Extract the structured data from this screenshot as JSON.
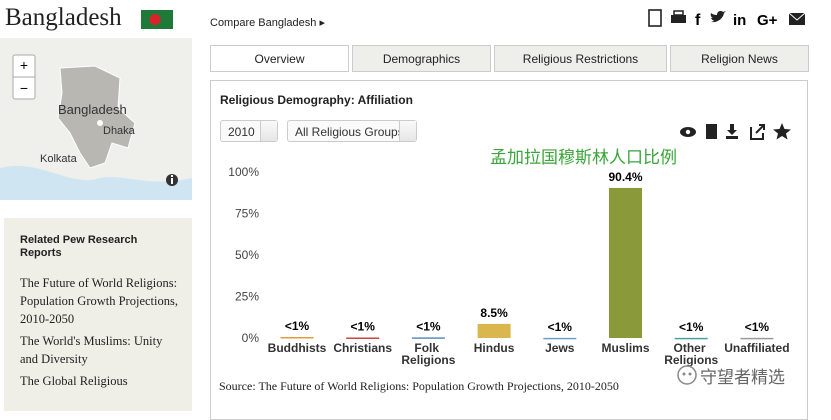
{
  "header": {
    "title": "Bangladesh",
    "compare": "Compare Bangladesh ▸",
    "share": [
      "f",
      "in",
      "G+"
    ]
  },
  "map": {
    "labels": [
      "Bangladesh",
      "Dhaka",
      "Kolkata"
    ],
    "zoom": [
      "+",
      "−"
    ]
  },
  "sidebar": {
    "heading": "Related Pew Research Reports",
    "links": [
      "The Future of World Religions: Population Growth Projections, 2010-2050",
      "The World's Muslims: Unity and Diversity",
      "The Global Religious"
    ]
  },
  "tabs": [
    "Overview",
    "Demographics",
    "Religious Restrictions",
    "Religion News"
  ],
  "panel": {
    "title": "Religious Demography: Affiliation",
    "year": "2010",
    "group": "All Religious Groups",
    "source": "Source: The Future of World Religions: Population Growth Projections, 2010-2050"
  },
  "watermark": "守望者精选",
  "chart_data": {
    "type": "bar",
    "annotation": "孟加拉国穆斯林人口比例",
    "categories": [
      "Buddhists",
      "Christians",
      "Folk Religions",
      "Hindus",
      "Jews",
      "Muslims",
      "Other Religions",
      "Unaffiliated"
    ],
    "values": [
      0.6,
      0.3,
      0.4,
      8.5,
      0.1,
      90.4,
      0.1,
      0.1
    ],
    "value_labels": [
      "<1%",
      "<1%",
      "<1%",
      "8.5%",
      "<1%",
      "90.4%",
      "<1%",
      "<1%"
    ],
    "colors": [
      "#e39b3a",
      "#c9463d",
      "#5b8fb9",
      "#d9b64e",
      "#6a9fc9",
      "#8a9a3b",
      "#4a9e9e",
      "#9a9a9a"
    ],
    "ylim": [
      0,
      100
    ],
    "yticks": [
      {
        "value": 0,
        "label": "0%"
      },
      {
        "value": 25,
        "label": "25%"
      },
      {
        "value": 50,
        "label": "50%"
      },
      {
        "value": 75,
        "label": "75%"
      },
      {
        "value": 100,
        "label": "100%"
      }
    ],
    "grid": false
  }
}
